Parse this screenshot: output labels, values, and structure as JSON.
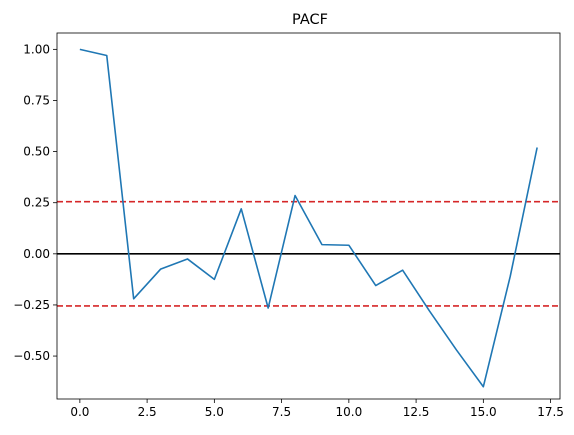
{
  "chart_data": {
    "type": "line",
    "title": "PACF",
    "xlabel": "",
    "ylabel": "",
    "xlim": [
      -0.85,
      17.85
    ],
    "ylim": [
      -0.71,
      1.08
    ],
    "xticks": [
      0.0,
      2.5,
      5.0,
      7.5,
      10.0,
      12.5,
      15.0,
      17.5
    ],
    "xtick_labels": [
      "0.0",
      "2.5",
      "5.0",
      "7.5",
      "10.0",
      "12.5",
      "15.0",
      "17.5"
    ],
    "yticks": [
      -0.5,
      -0.25,
      0.0,
      0.25,
      0.5,
      0.75,
      1.0
    ],
    "ytick_labels": [
      "−0.50",
      "−0.25",
      "0.00",
      "0.25",
      "0.50",
      "0.75",
      "1.00"
    ],
    "grid": false,
    "series": [
      {
        "color": "#1f77b4",
        "x": [
          0,
          1,
          2,
          3,
          4,
          5,
          6,
          7,
          8,
          9,
          10,
          11,
          12,
          13,
          14,
          15,
          16,
          17
        ],
        "y": [
          1.0,
          0.97,
          -0.22,
          -0.075,
          -0.025,
          -0.125,
          0.22,
          -0.265,
          0.285,
          0.045,
          0.042,
          -0.155,
          -0.08,
          -0.28,
          -0.47,
          -0.65,
          -0.11,
          0.52
        ]
      }
    ],
    "hlines": [
      {
        "y": 0.0,
        "color": "#000000",
        "style": "solid"
      },
      {
        "y": 0.255,
        "color": "#d62728",
        "style": "dashed"
      },
      {
        "y": -0.255,
        "color": "#d62728",
        "style": "dashed"
      }
    ]
  }
}
